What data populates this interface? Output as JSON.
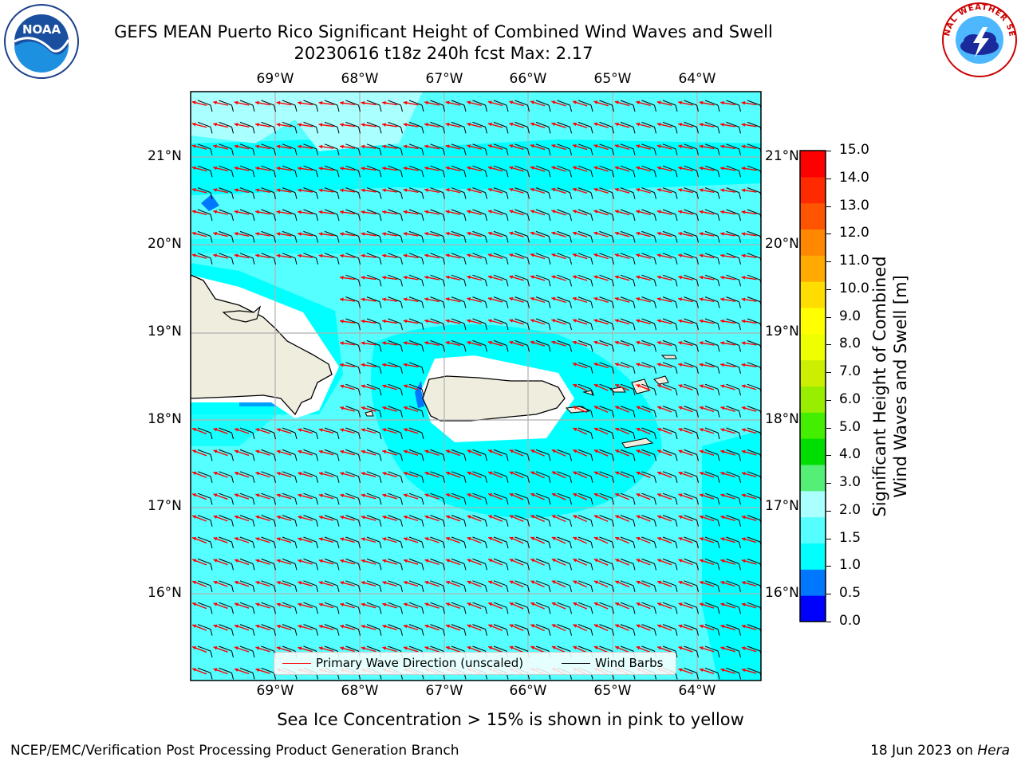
{
  "title": {
    "line1": "GEFS MEAN Puerto Rico Significant Height of Combined Wind Waves and Swell",
    "line2": "20230616 t18z 240h fcst   Max: 2.17"
  },
  "logos": {
    "left": {
      "icon": "noaa-logo-icon",
      "text": "NOAA"
    },
    "right": {
      "icon": "nws-logo-icon",
      "text": "NATIONAL WEATHER SERVICE"
    }
  },
  "map": {
    "lon_labels": [
      "69°W",
      "68°W",
      "67°W",
      "66°W",
      "65°W",
      "64°W"
    ],
    "lat_labels": [
      "21°N",
      "20°N",
      "19°N",
      "18°N",
      "17°N",
      "16°N"
    ],
    "land_color": "#efedde",
    "coast_color": "#000000",
    "grid_color": "#b0b0b0",
    "barb_color": "#000000",
    "wave_dir_color": "#ff0000"
  },
  "legend": {
    "wave_dir": "Primary Wave Direction (unscaled)",
    "wind_barbs": "Wind Barbs"
  },
  "colorbar": {
    "title_line1": "Significant Height of Combined",
    "title_line2": "Wind Waves and Swell [m]",
    "ticks": [
      "15.0",
      "14.0",
      "13.0",
      "12.0",
      "11.0",
      "10.0",
      "9.0",
      "8.0",
      "7.0",
      "6.0",
      "5.0",
      "4.0",
      "3.0",
      "2.0",
      "1.5",
      "1.0",
      "0.5",
      "0.0"
    ],
    "colors": [
      "#0000ff",
      "#0077ff",
      "#00ffff",
      "#55ffff",
      "#aaffff",
      "#55ee77",
      "#00dd00",
      "#44ee00",
      "#99ee00",
      "#ccee00",
      "#eeff00",
      "#ffff00",
      "#ffdd00",
      "#ffaa00",
      "#ff8800",
      "#ff5500",
      "#ff2a00",
      "#ff0000"
    ]
  },
  "subnote": "Sea Ice Concentration > 15% is shown in pink to yellow",
  "footer": {
    "left": "NCEP/EMC/Verification Post Processing Product Generation Branch",
    "right_prefix": "18 Jun 2023 on ",
    "right_host": "Hera"
  }
}
